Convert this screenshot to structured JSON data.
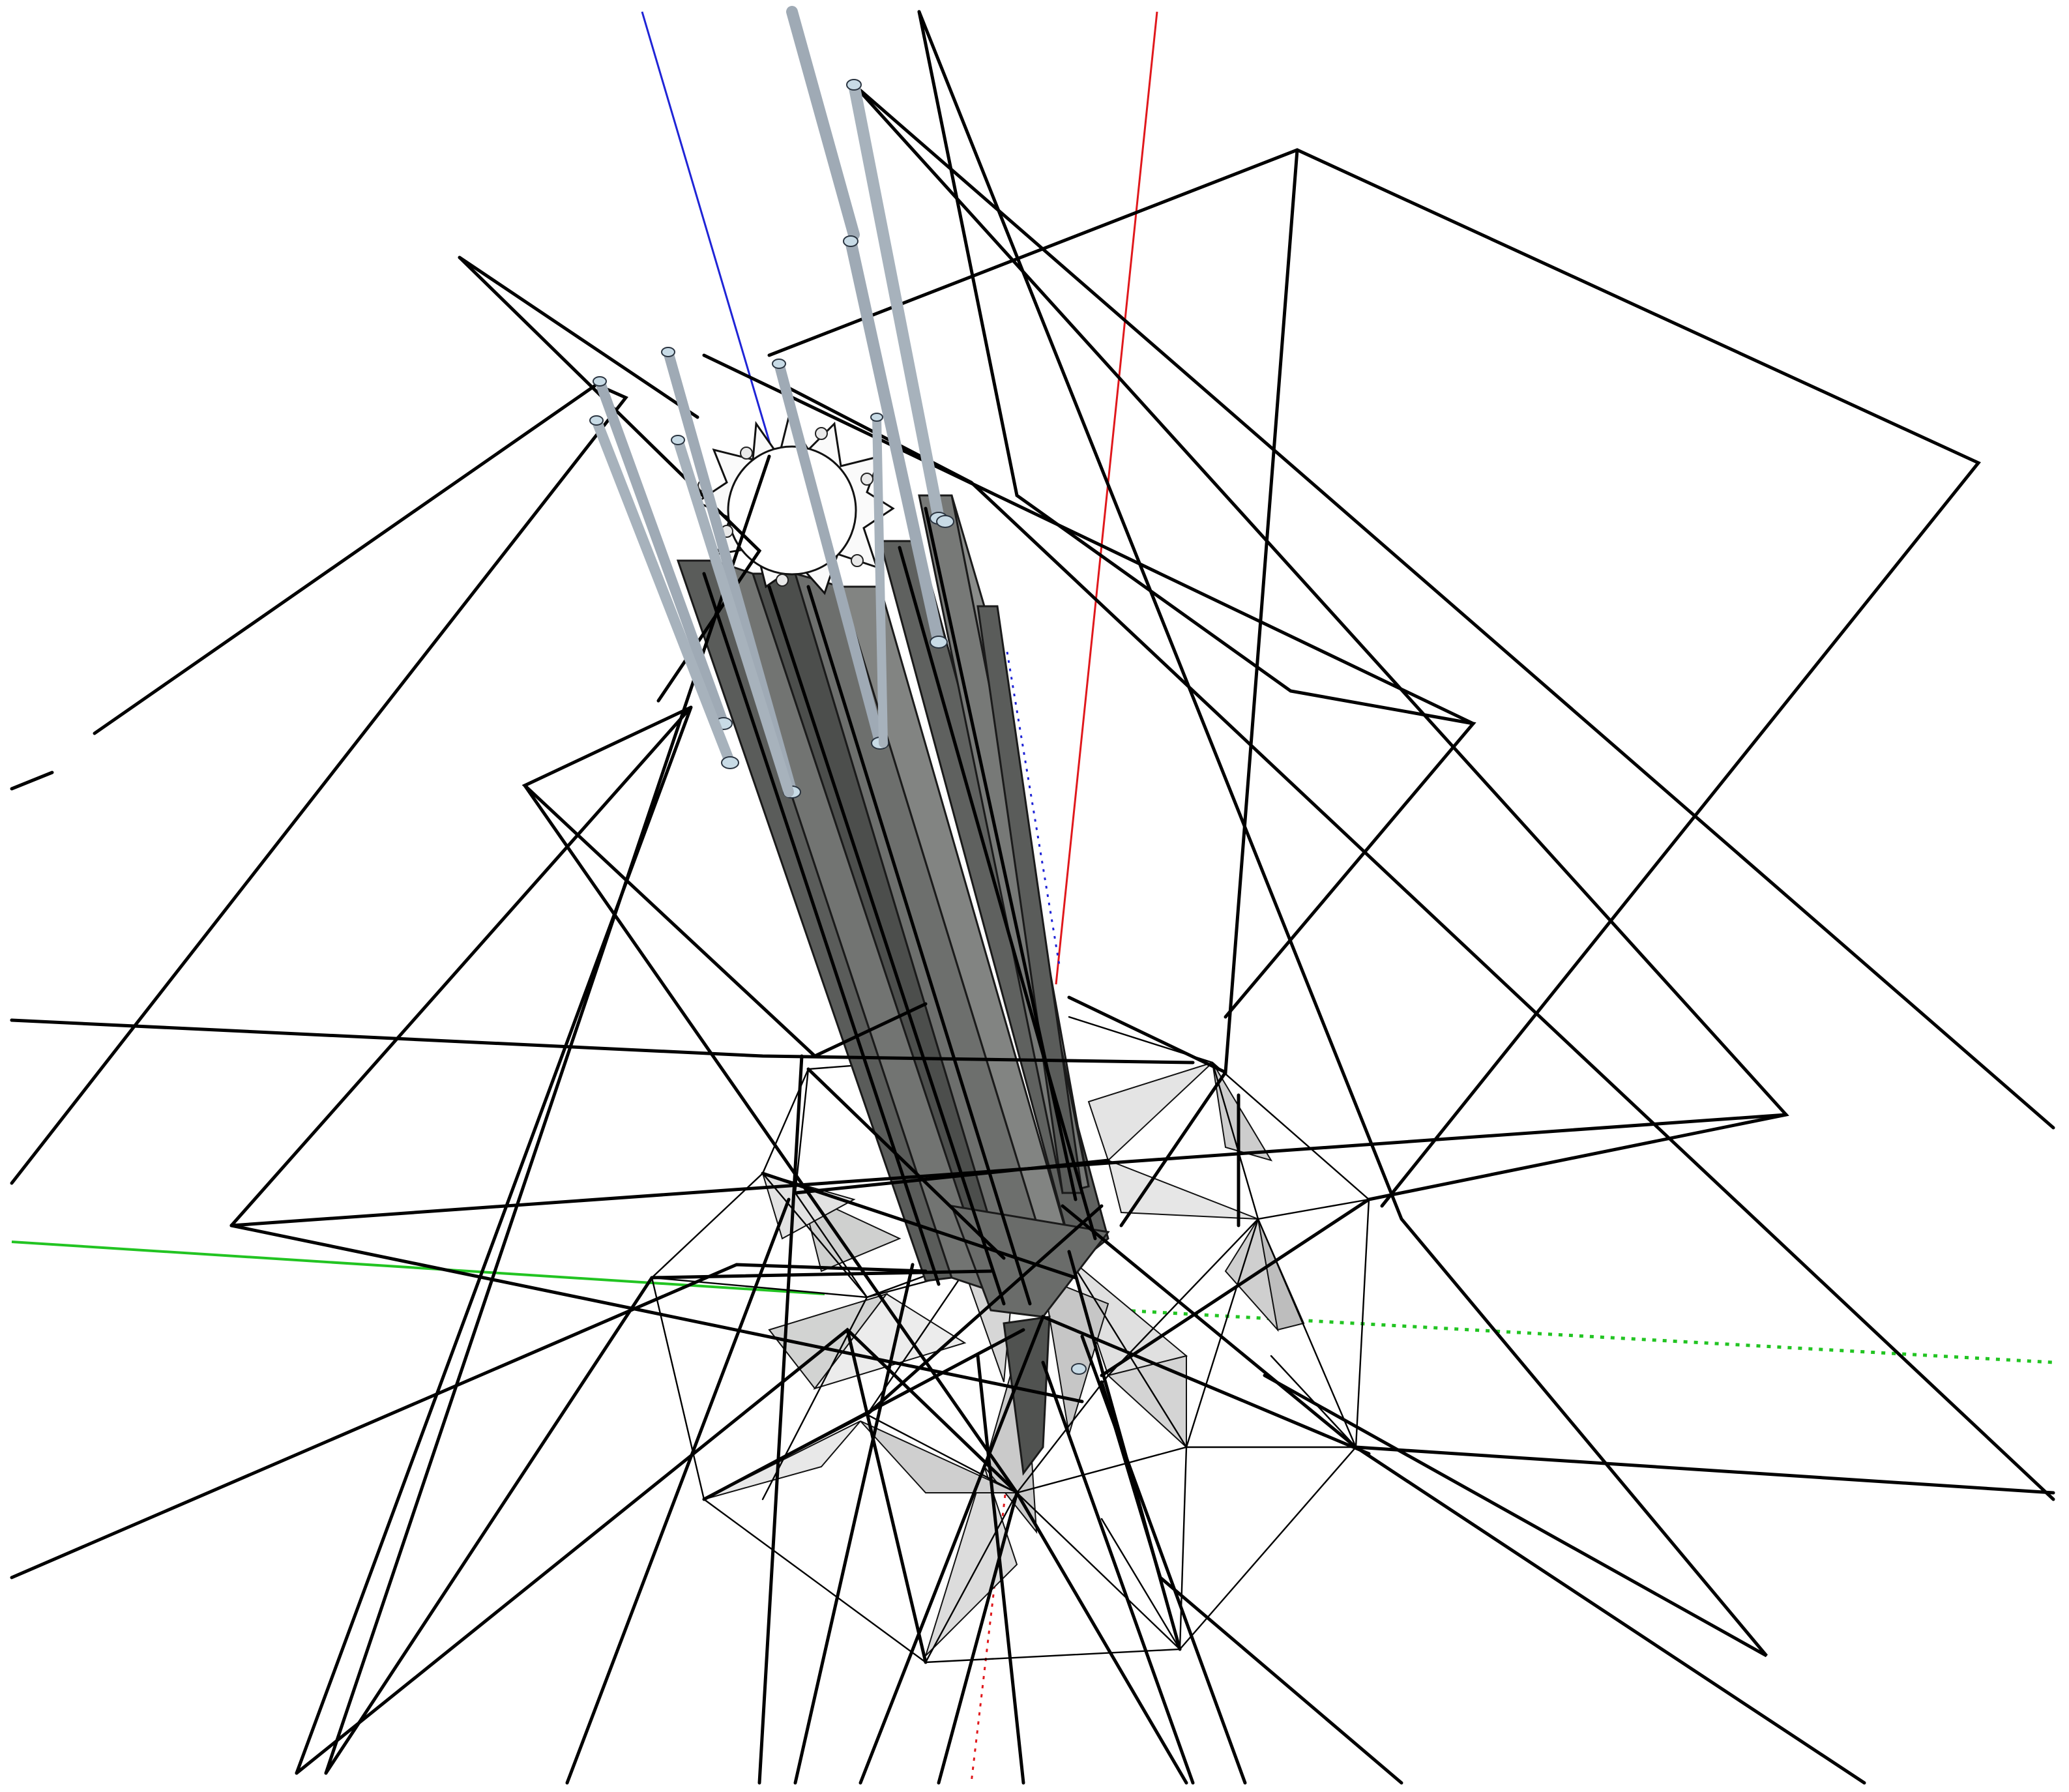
{
  "viewport": {
    "background": "#ffffff",
    "edge_color": "#000000",
    "axis_colors": {
      "red": "#e0181c",
      "green": "#22c422",
      "blue": "#1f24d6"
    },
    "shading": {
      "column_fill": "#6a6d6a",
      "column_fill_dark": "#4b4d4b",
      "facet_fill": "#d2d3d2",
      "facet_fill_light": "#ececec",
      "rod_fill": "#9faab5",
      "rod_cap": "#c8dbe6",
      "gear_fill": "#fafafa"
    }
  }
}
